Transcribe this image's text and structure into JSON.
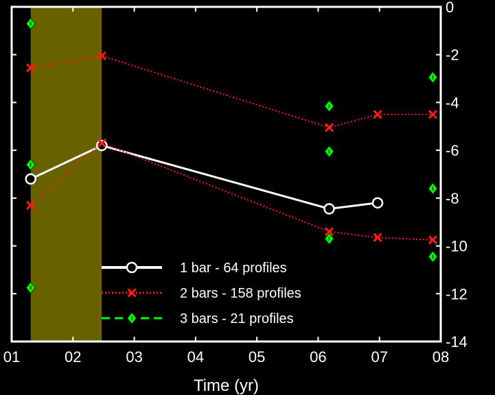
{
  "chart_data": {
    "type": "line",
    "xlabel": "Time (yr)",
    "ylabel": "",
    "xlim": [
      2001,
      2008
    ],
    "ylim": [
      -14,
      0
    ],
    "x_ticks": [
      2001,
      2002,
      2003,
      2004,
      2005,
      2006,
      2007,
      2008
    ],
    "x_tick_labels": [
      "01",
      "02",
      "03",
      "04",
      "05",
      "06",
      "07",
      "08"
    ],
    "y_ticks": [
      0,
      -2,
      -4,
      -6,
      -8,
      -10,
      -12,
      -14
    ],
    "y_tick_labels": [
      "0",
      "-2",
      "-4",
      "-6",
      "-8",
      "-10",
      "-12",
      "-14"
    ],
    "y_axis_side": "right",
    "grid": false,
    "background": "#000000",
    "highlight_band": {
      "x": [
        2001.31,
        2002.47
      ],
      "color": "#7a7200"
    },
    "legend_position": "bottom-center",
    "series": [
      {
        "name": "1 bar - 64 profiles",
        "color": "#ffffff",
        "line_style": "solid",
        "marker": "circle",
        "points": [
          [
            2001.31,
            -7.2
          ],
          [
            2002.47,
            -5.8
          ],
          [
            2006.18,
            -8.45
          ],
          [
            2006.97,
            -8.2
          ]
        ]
      },
      {
        "name": "2 bars - 158 profiles",
        "color": "#ff1a1a",
        "line_style": "dotted",
        "marker": "x",
        "segments": [
          [
            [
              2001.31,
              -2.55
            ],
            [
              2002.47,
              -2.05
            ],
            [
              2006.18,
              -5.05
            ],
            [
              2006.97,
              -4.5
            ],
            [
              2007.87,
              -4.5
            ]
          ],
          [
            [
              2001.31,
              -8.3
            ],
            [
              2002.47,
              -5.7
            ],
            [
              2006.18,
              -9.4
            ],
            [
              2006.97,
              -9.65
            ],
            [
              2007.87,
              -9.75
            ]
          ]
        ]
      },
      {
        "name": "3 bars - 21 profiles",
        "color": "#00ff00",
        "line_style": "dashed",
        "marker": "diamond",
        "points": [
          [
            2001.31,
            -0.7
          ],
          [
            2001.31,
            -6.6
          ],
          [
            2001.31,
            -11.75
          ],
          [
            2006.18,
            -4.15
          ],
          [
            2006.18,
            -6.05
          ],
          [
            2006.18,
            -9.7
          ],
          [
            2007.87,
            -2.95
          ],
          [
            2007.87,
            -7.6
          ],
          [
            2007.87,
            -10.45
          ]
        ]
      }
    ]
  }
}
